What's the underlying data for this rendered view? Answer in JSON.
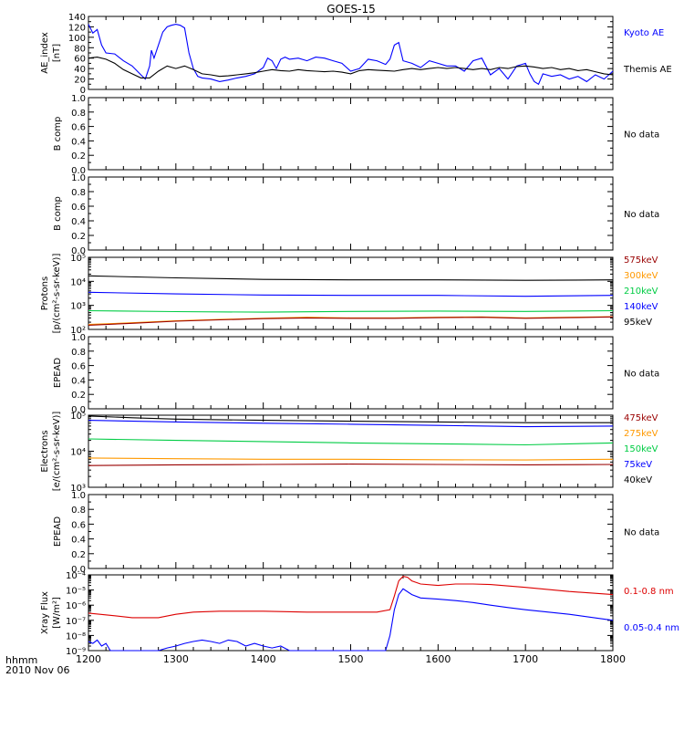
{
  "title": "GOES-15",
  "footer": {
    "line1": "hhmm",
    "line2": "2010 Nov 06"
  },
  "x_axis": {
    "ticks": [
      "1200",
      "1300",
      "1400",
      "1500",
      "1600",
      "1700",
      "1800"
    ],
    "range": [
      1200,
      1800
    ]
  },
  "colors": {
    "black": "#000000",
    "blue": "#0000ff",
    "red": "#dd0000",
    "orange": "#ff9900",
    "green": "#00cc44",
    "darkred": "#990000",
    "plotbg": "#ffffff"
  },
  "chart_data": [
    {
      "id": "ae",
      "type": "line",
      "ylabel": [
        "AE_index",
        "[nT]"
      ],
      "ylim": [
        0,
        140
      ],
      "yticks": [
        "0",
        "20",
        "40",
        "60",
        "80",
        "100",
        "120",
        "140"
      ],
      "legend": [
        {
          "label": "Kyoto AE",
          "color": "#0000ff"
        },
        {
          "label": "Themis AE",
          "color": "#000000"
        }
      ],
      "series": [
        {
          "name": "Kyoto AE",
          "color": "#0000ff",
          "x": [
            1200,
            1205,
            1210,
            1215,
            1220,
            1230,
            1240,
            1250,
            1260,
            1265,
            1270,
            1272,
            1275,
            1280,
            1285,
            1290,
            1295,
            1300,
            1305,
            1310,
            1315,
            1320,
            1325,
            1330,
            1340,
            1350,
            1360,
            1370,
            1380,
            1390,
            1400,
            1405,
            1410,
            1415,
            1420,
            1425,
            1430,
            1440,
            1450,
            1460,
            1470,
            1480,
            1490,
            1500,
            1510,
            1520,
            1530,
            1540,
            1545,
            1550,
            1555,
            1560,
            1570,
            1580,
            1590,
            1600,
            1610,
            1620,
            1630,
            1640,
            1650,
            1660,
            1670,
            1680,
            1690,
            1700,
            1705,
            1710,
            1715,
            1720,
            1730,
            1740,
            1750,
            1760,
            1770,
            1780,
            1790,
            1800
          ],
          "y": [
            125,
            108,
            115,
            85,
            70,
            68,
            55,
            45,
            28,
            20,
            45,
            75,
            60,
            85,
            110,
            120,
            123,
            125,
            123,
            118,
            70,
            40,
            25,
            22,
            20,
            15,
            18,
            22,
            25,
            30,
            42,
            60,
            55,
            40,
            58,
            62,
            58,
            60,
            55,
            62,
            60,
            55,
            50,
            35,
            40,
            58,
            55,
            48,
            58,
            85,
            90,
            55,
            50,
            42,
            55,
            50,
            45,
            45,
            35,
            55,
            60,
            28,
            40,
            20,
            45,
            50,
            30,
            15,
            10,
            30,
            25,
            28,
            20,
            25,
            15,
            28,
            20,
            35
          ]
        },
        {
          "name": "Themis AE",
          "color": "#000000",
          "x": [
            1200,
            1210,
            1220,
            1230,
            1240,
            1250,
            1260,
            1270,
            1280,
            1290,
            1300,
            1310,
            1320,
            1330,
            1340,
            1350,
            1360,
            1370,
            1380,
            1390,
            1400,
            1410,
            1420,
            1430,
            1440,
            1450,
            1460,
            1470,
            1480,
            1490,
            1500,
            1510,
            1520,
            1530,
            1540,
            1550,
            1560,
            1570,
            1580,
            1590,
            1600,
            1610,
            1620,
            1630,
            1640,
            1650,
            1660,
            1670,
            1680,
            1690,
            1700,
            1710,
            1720,
            1730,
            1740,
            1750,
            1760,
            1770,
            1780,
            1790,
            1800
          ],
          "y": [
            60,
            62,
            58,
            50,
            38,
            30,
            22,
            22,
            35,
            45,
            40,
            45,
            38,
            30,
            28,
            25,
            26,
            28,
            30,
            32,
            35,
            38,
            36,
            35,
            38,
            36,
            35,
            34,
            35,
            33,
            30,
            36,
            38,
            37,
            36,
            35,
            38,
            40,
            38,
            40,
            42,
            40,
            42,
            40,
            38,
            40,
            38,
            42,
            40,
            44,
            45,
            43,
            40,
            42,
            38,
            40,
            36,
            38,
            34,
            30,
            28
          ]
        }
      ]
    },
    {
      "id": "bcomp1",
      "type": "line",
      "ylabel": [
        "B comp"
      ],
      "ylim": [
        0,
        1
      ],
      "yticks": [
        "0.0",
        "0.2",
        "0.4",
        "0.6",
        "0.8",
        "1.0"
      ],
      "status": "No data"
    },
    {
      "id": "bcomp2",
      "type": "line",
      "ylabel": [
        "B comp"
      ],
      "ylim": [
        0,
        1
      ],
      "yticks": [
        "0.0",
        "0.2",
        "0.4",
        "0.6",
        "0.8",
        "1.0"
      ],
      "status": "No data"
    },
    {
      "id": "protons",
      "type": "line",
      "scale": "log",
      "ylabel": [
        "Protons",
        "[p/(cm²-s-sr-keV)]"
      ],
      "ylim": [
        100,
        100000
      ],
      "yticks": [
        {
          "value": 100,
          "label": "10²"
        },
        {
          "value": 1000,
          "label": "10³"
        },
        {
          "value": 10000,
          "label": "10⁴"
        },
        {
          "value": 100000,
          "label": "10⁵"
        }
      ],
      "legend": [
        {
          "label": "575keV",
          "color": "#990000"
        },
        {
          "label": "300keV",
          "color": "#ff9900"
        },
        {
          "label": "210keV",
          "color": "#00cc44"
        },
        {
          "label": "140keV",
          "color": "#0000ff"
        },
        {
          "label": "95keV",
          "color": "#000000"
        }
      ],
      "series": [
        {
          "name": "95keV",
          "color": "#000000",
          "x": [
            1200,
            1300,
            1400,
            1500,
            1600,
            1700,
            1800
          ],
          "y": [
            17000,
            14000,
            12000,
            11500,
            11500,
            11000,
            11500
          ]
        },
        {
          "name": "140keV",
          "color": "#0000ff",
          "x": [
            1200,
            1300,
            1400,
            1500,
            1600,
            1700,
            1800
          ],
          "y": [
            3500,
            3000,
            2700,
            2600,
            2600,
            2400,
            2600
          ]
        },
        {
          "name": "210keV",
          "color": "#00cc44",
          "x": [
            1200,
            1300,
            1400,
            1500,
            1600,
            1700,
            1800
          ],
          "y": [
            600,
            550,
            520,
            560,
            580,
            560,
            600
          ]
        },
        {
          "name": "300keV",
          "color": "#ff9900",
          "x": [
            1200,
            1250,
            1300,
            1350,
            1400,
            1450,
            1500,
            1550,
            1600,
            1650,
            1700,
            1750,
            1800
          ],
          "y": [
            160,
            190,
            230,
            260,
            290,
            320,
            300,
            300,
            320,
            330,
            300,
            320,
            340
          ]
        },
        {
          "name": "575keV",
          "color": "#990000",
          "x": [
            1200,
            1250,
            1300,
            1350,
            1400,
            1450,
            1500,
            1550,
            1600,
            1650,
            1700,
            1750,
            1800
          ],
          "y": [
            150,
            180,
            220,
            250,
            280,
            300,
            290,
            290,
            310,
            320,
            290,
            310,
            330
          ]
        }
      ]
    },
    {
      "id": "epead1",
      "type": "line",
      "ylabel": [
        "EPEAD"
      ],
      "ylim": [
        0,
        1
      ],
      "yticks": [
        "0.0",
        "0.2",
        "0.4",
        "0.6",
        "0.8",
        "1.0"
      ],
      "status": "No data"
    },
    {
      "id": "electrons",
      "type": "line",
      "scale": "log",
      "ylabel": [
        "Electrons",
        "[e/(cm²-s-sr-keV)]"
      ],
      "ylim": [
        1000,
        100000
      ],
      "yticks": [
        {
          "value": 1000,
          "label": "10³"
        },
        {
          "value": 10000,
          "label": "10⁴"
        },
        {
          "value": 100000,
          "label": "10⁵"
        }
      ],
      "legend": [
        {
          "label": "475keV",
          "color": "#990000"
        },
        {
          "label": "275keV",
          "color": "#ff9900"
        },
        {
          "label": "150keV",
          "color": "#00cc44"
        },
        {
          "label": "75keV",
          "color": "#0000ff"
        },
        {
          "label": "40keV",
          "color": "#000000"
        }
      ],
      "series": [
        {
          "name": "40keV",
          "color": "#000000",
          "x": [
            1200,
            1250,
            1300,
            1400,
            1500,
            1600,
            1700,
            1800
          ],
          "y": [
            95000,
            85000,
            78000,
            72000,
            68000,
            65000,
            62000,
            62000
          ]
        },
        {
          "name": "75keV",
          "color": "#0000ff",
          "x": [
            1200,
            1300,
            1400,
            1500,
            1600,
            1700,
            1800
          ],
          "y": [
            72000,
            65000,
            60000,
            56000,
            52000,
            48000,
            50000
          ]
        },
        {
          "name": "150keV",
          "color": "#00cc44",
          "x": [
            1200,
            1300,
            1400,
            1500,
            1600,
            1700,
            1800
          ],
          "y": [
            22000,
            20000,
            18500,
            17000,
            16000,
            15000,
            17000
          ]
        },
        {
          "name": "275keV",
          "color": "#ff9900",
          "x": [
            1200,
            1300,
            1400,
            1500,
            1600,
            1700,
            1800
          ],
          "y": [
            6500,
            6200,
            6000,
            6000,
            5800,
            5700,
            6000
          ]
        },
        {
          "name": "475keV",
          "color": "#990000",
          "x": [
            1200,
            1300,
            1400,
            1500,
            1600,
            1700,
            1800
          ],
          "y": [
            4000,
            4200,
            4300,
            4400,
            4300,
            4200,
            4300
          ]
        }
      ]
    },
    {
      "id": "epead2",
      "type": "line",
      "ylabel": [
        "EPEAD"
      ],
      "ylim": [
        0,
        1
      ],
      "yticks": [
        "0.0",
        "0.2",
        "0.4",
        "0.6",
        "0.8",
        "1.0"
      ],
      "status": "No data"
    },
    {
      "id": "xray",
      "type": "line",
      "scale": "log",
      "ylabel": [
        "Xray Flux",
        "[W/m²]"
      ],
      "ylim": [
        1e-09,
        0.0001
      ],
      "yticks": [
        {
          "value": 1e-09,
          "label": "10⁻⁹"
        },
        {
          "value": 1e-08,
          "label": "10⁻⁸"
        },
        {
          "value": 1e-07,
          "label": "10⁻⁷"
        },
        {
          "value": 1e-06,
          "label": "10⁻⁶"
        },
        {
          "value": 1e-05,
          "label": "10⁻⁵"
        },
        {
          "value": 0.0001,
          "label": "10⁻⁴"
        }
      ],
      "legend": [
        {
          "label": "0.1-0.8 nm",
          "color": "#dd0000"
        },
        {
          "label": "0.05-0.4 nm",
          "color": "#0000ff"
        }
      ],
      "series": [
        {
          "name": "0.1-0.8 nm",
          "color": "#dd0000",
          "x": [
            1200,
            1230,
            1250,
            1280,
            1300,
            1320,
            1350,
            1400,
            1450,
            1500,
            1530,
            1545,
            1550,
            1555,
            1560,
            1565,
            1570,
            1580,
            1600,
            1620,
            1640,
            1660,
            1700,
            1750,
            1800
          ],
          "y": [
            3e-07,
            2e-07,
            1.5e-07,
            1.5e-07,
            2.5e-07,
            3.5e-07,
            4e-07,
            4e-07,
            3.5e-07,
            3.5e-07,
            3.5e-07,
            5e-07,
            4e-06,
            4e-05,
            8e-05,
            7e-05,
            4e-05,
            2.5e-05,
            2e-05,
            2.5e-05,
            2.5e-05,
            2.3e-05,
            1.5e-05,
            8e-06,
            5e-06
          ]
        },
        {
          "name": "0.05-0.4 nm",
          "color": "#0000ff",
          "x": [
            1200,
            1205,
            1210,
            1215,
            1220,
            1225,
            1230,
            1240,
            1250,
            1260,
            1270,
            1280,
            1290,
            1300,
            1310,
            1320,
            1330,
            1340,
            1350,
            1360,
            1370,
            1380,
            1390,
            1400,
            1410,
            1420,
            1430,
            1440,
            1450,
            1460,
            1470,
            1480,
            1490,
            1500,
            1510,
            1520,
            1530,
            1540,
            1545,
            1550,
            1555,
            1560,
            1570,
            1580,
            1600,
            1620,
            1640,
            1660,
            1680,
            1700,
            1750,
            1800
          ],
          "y": [
            4e-09,
            3e-09,
            5e-09,
            2e-09,
            3e-09,
            1e-09,
            1e-09,
            1e-09,
            1e-09,
            1e-09,
            1e-09,
            1e-09,
            1.5e-09,
            2e-09,
            3e-09,
            4e-09,
            5e-09,
            4e-09,
            3e-09,
            5e-09,
            4e-09,
            2e-09,
            3e-09,
            2e-09,
            1.5e-09,
            2e-09,
            1e-09,
            1e-09,
            1e-09,
            1e-09,
            1e-09,
            1e-09,
            1e-09,
            1e-09,
            1e-09,
            1e-09,
            1e-09,
            1e-09,
            1e-08,
            5e-07,
            5e-06,
            1.2e-05,
            5e-06,
            3e-06,
            2.5e-06,
            2e-06,
            1.5e-06,
            1e-06,
            7e-07,
            5e-07,
            2.5e-07,
            1e-07
          ]
        }
      ]
    }
  ]
}
